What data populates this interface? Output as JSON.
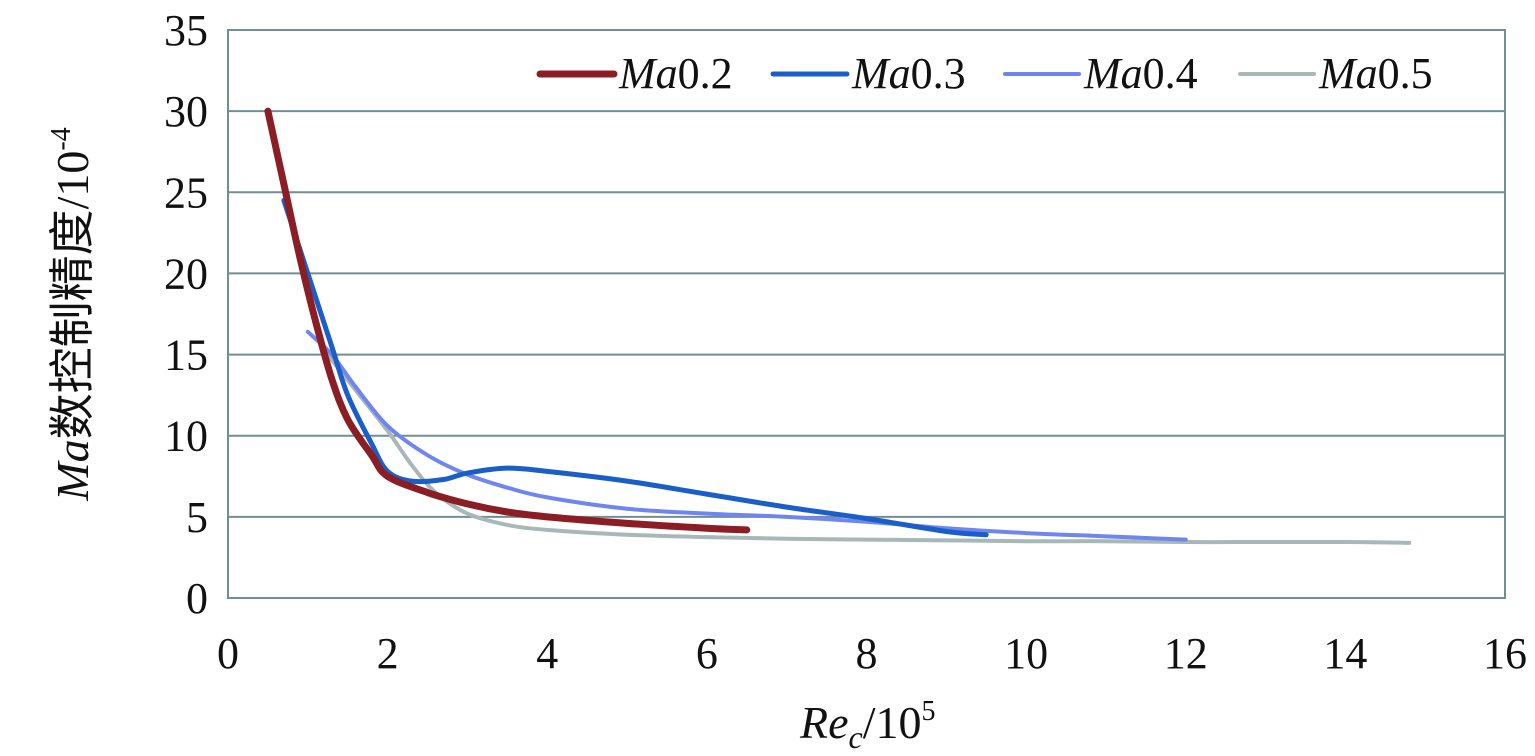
{
  "chart_data": {
    "type": "line",
    "title": "",
    "xlabel": {
      "main": "Re",
      "sub": "c",
      "rest": "/10",
      "sup": "5"
    },
    "ylabel": {
      "italic": "Ma",
      "rest": "数控制精度/10",
      "sup": "-4"
    },
    "xlim": [
      0,
      16
    ],
    "ylim": [
      0,
      35
    ],
    "x_ticks": [
      0,
      2,
      4,
      6,
      8,
      10,
      12,
      14,
      16
    ],
    "y_ticks": [
      0,
      5,
      10,
      15,
      20,
      25,
      30,
      35
    ],
    "grid": {
      "horizontal": true,
      "vertical": false
    },
    "legend_position": "top-right",
    "series": [
      {
        "name_italic": "Ma",
        "name_rest": "0.2",
        "color": "#8b1e24",
        "x": [
          0.5,
          0.7,
          0.9,
          1.1,
          1.3,
          1.5,
          1.8,
          2.0,
          2.5,
          3.0,
          3.5,
          4.0,
          5.0,
          6.0,
          6.5
        ],
        "y": [
          30,
          25.5,
          21,
          17,
          13.5,
          11,
          8.8,
          7.5,
          6.5,
          5.8,
          5.3,
          5.0,
          4.6,
          4.3,
          4.2
        ]
      },
      {
        "name_italic": "Ma",
        "name_rest": "0.3",
        "color": "#1a5fc8",
        "x": [
          0.7,
          0.9,
          1.1,
          1.3,
          1.5,
          1.8,
          2.0,
          2.3,
          2.7,
          3.0,
          3.5,
          4.0,
          5.0,
          6.0,
          7.0,
          8.0,
          9.0,
          9.5
        ],
        "y": [
          24.5,
          21.5,
          18.5,
          15.5,
          12.5,
          9.5,
          7.8,
          7.2,
          7.3,
          7.7,
          8.0,
          7.8,
          7.2,
          6.4,
          5.6,
          4.9,
          4.1,
          3.9
        ]
      },
      {
        "name_italic": "Ma",
        "name_rest": "0.4",
        "color": "#6f86f0",
        "x": [
          1.0,
          1.3,
          1.6,
          2.0,
          2.5,
          3.0,
          3.5,
          4.0,
          5.0,
          6.0,
          7.0,
          8.0,
          9.0,
          10.0,
          11.0,
          12.0
        ],
        "y": [
          16.4,
          15.0,
          13.0,
          10.6,
          8.8,
          7.6,
          6.8,
          6.2,
          5.5,
          5.2,
          5.0,
          4.7,
          4.3,
          4.0,
          3.8,
          3.6
        ]
      },
      {
        "name_italic": "Ma",
        "name_rest": "0.5",
        "color": "#a8b8b8",
        "x": [
          1.2,
          1.6,
          2.0,
          2.3,
          2.6,
          3.0,
          3.5,
          4.0,
          5.0,
          6.0,
          7.0,
          8.0,
          9.0,
          10.0,
          11.0,
          12.0,
          13.0,
          14.0,
          14.8
        ],
        "y": [
          15.3,
          12.8,
          10.3,
          8.2,
          6.5,
          5.2,
          4.5,
          4.2,
          3.9,
          3.75,
          3.65,
          3.6,
          3.55,
          3.5,
          3.5,
          3.45,
          3.45,
          3.45,
          3.4
        ]
      }
    ]
  }
}
